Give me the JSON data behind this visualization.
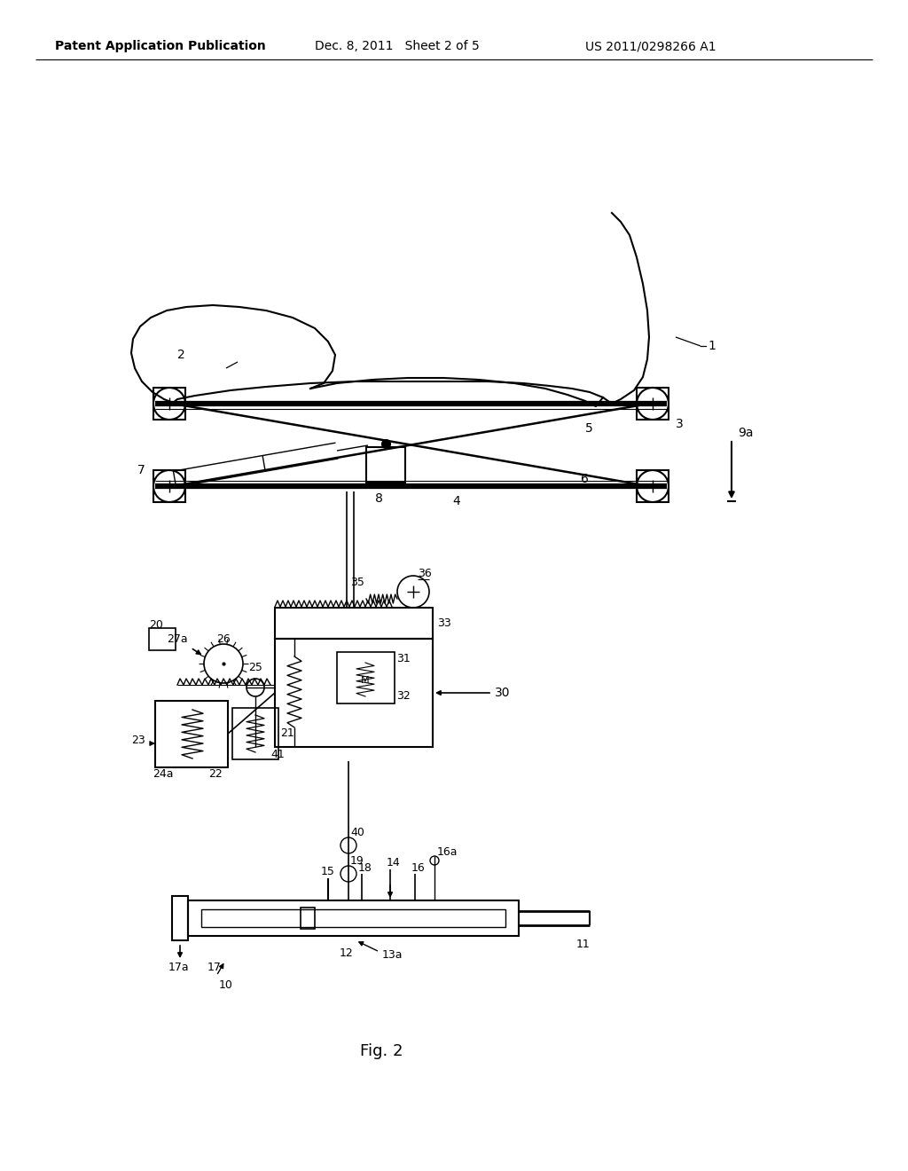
{
  "bg_color": "#ffffff",
  "header_left": "Patent Application Publication",
  "header_mid": "Dec. 8, 2011   Sheet 2 of 5",
  "header_right": "US 2011/0298266 A1",
  "fig_label": "Fig. 2"
}
